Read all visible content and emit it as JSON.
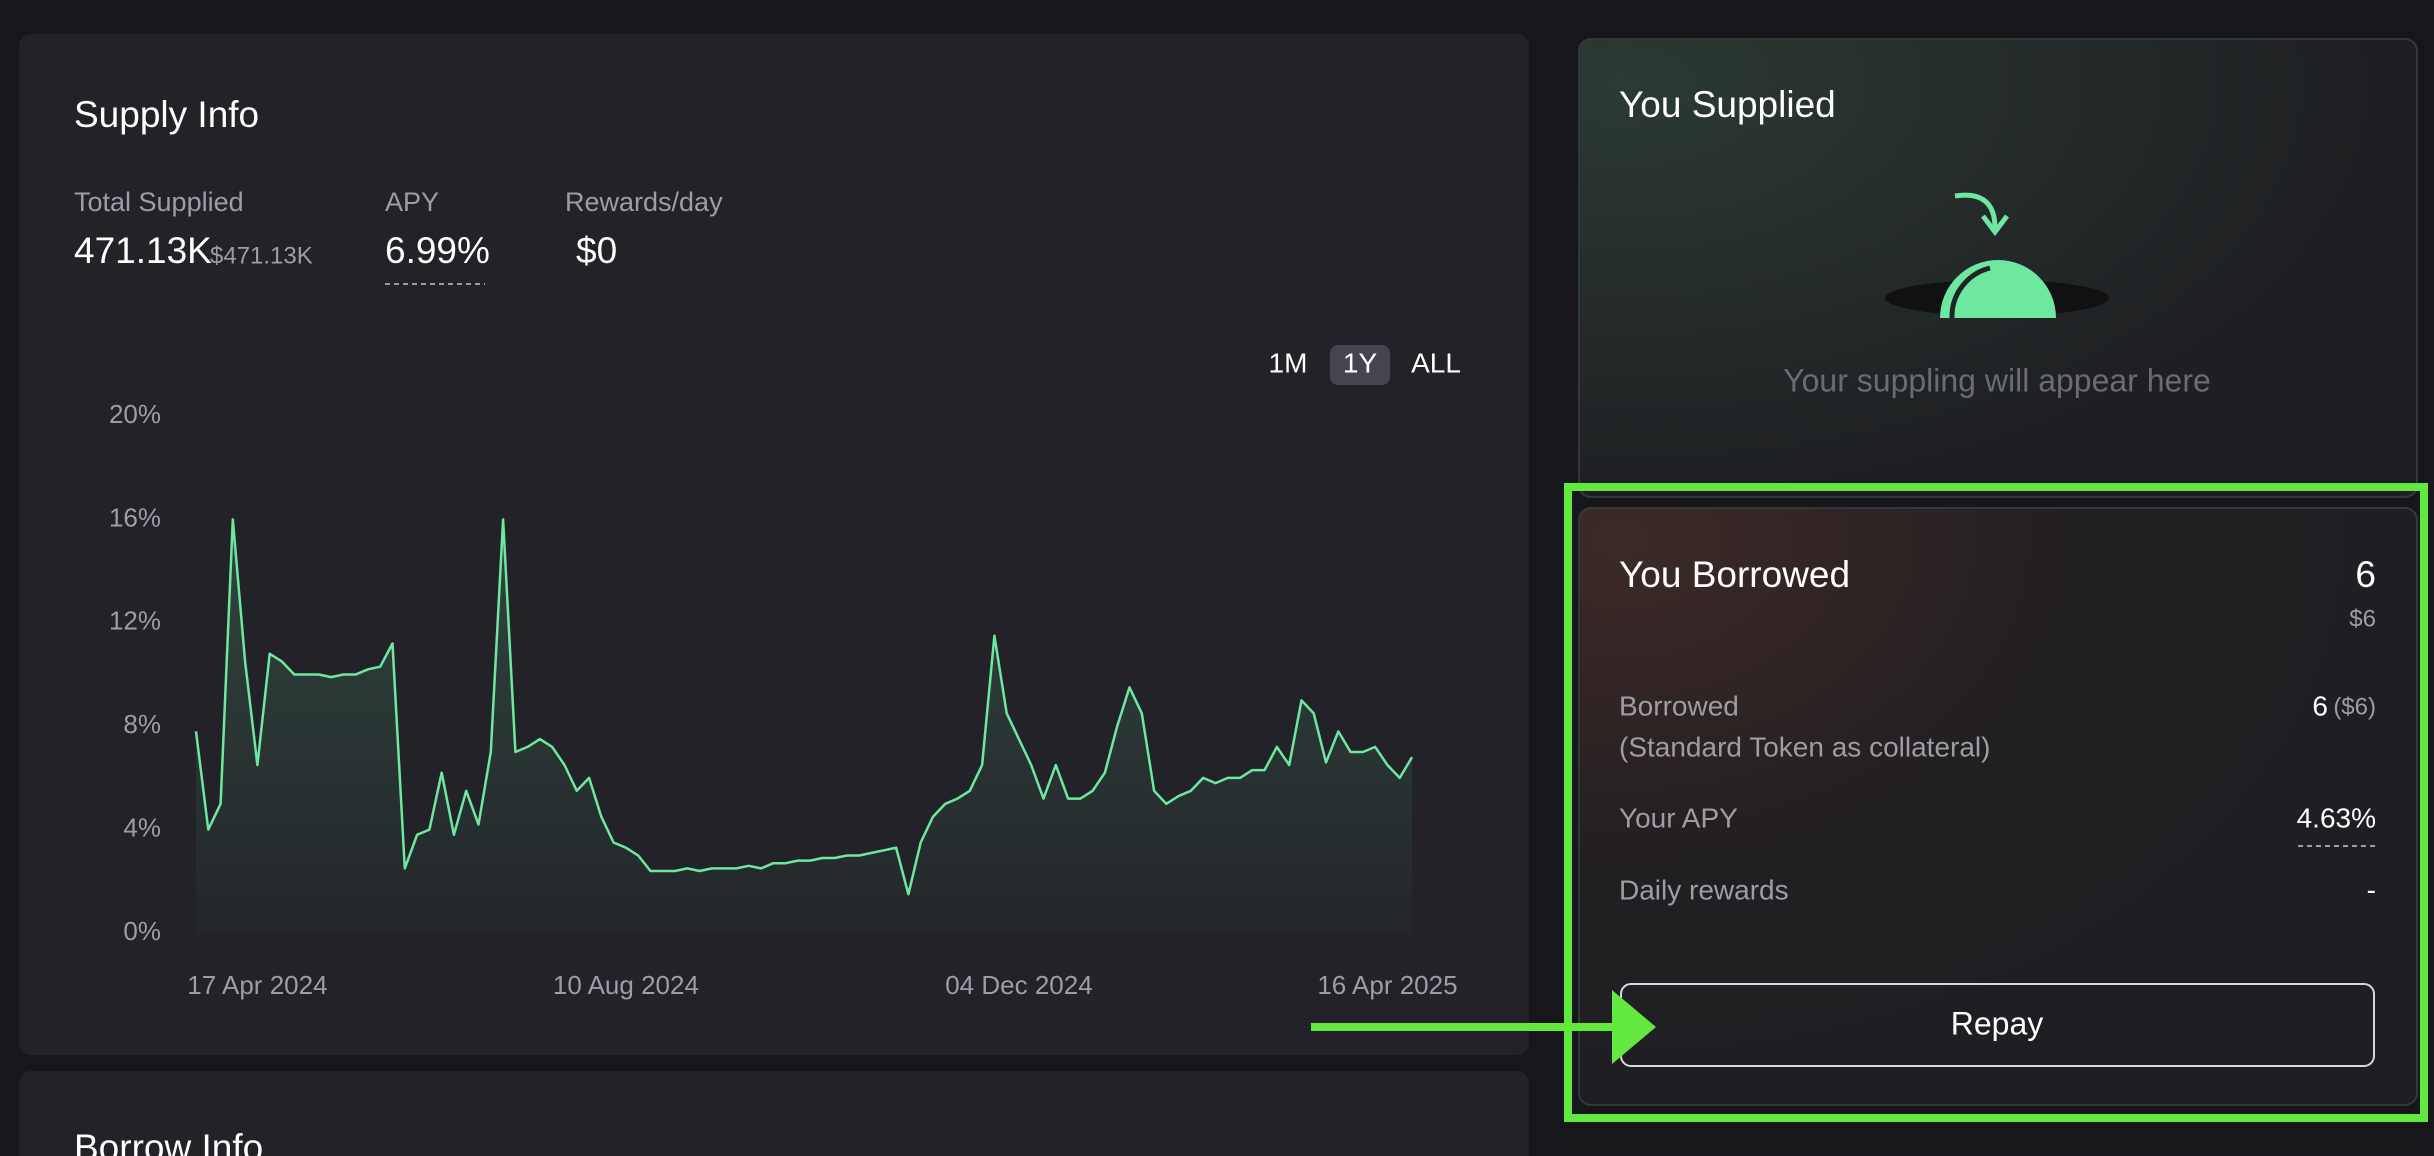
{
  "supply_info": {
    "title": "Supply Info",
    "total_supplied_label": "Total Supplied",
    "total_supplied": "471.13K",
    "total_supplied_usd": "$471.13K",
    "apy_label": "APY",
    "apy": "6.99%",
    "rewards_label": "Rewards/day",
    "rewards": "$0",
    "ranges": [
      "1M",
      "1Y",
      "ALL"
    ]
  },
  "chart_data": {
    "type": "line",
    "color": "#6ee7a0",
    "values": [
      7.8,
      4,
      5,
      16,
      10.5,
      6.5,
      10.8,
      10.5,
      10,
      10,
      10,
      9.9,
      10,
      10,
      10.2,
      10.3,
      11.2,
      2.5,
      3.8,
      4,
      6.2,
      3.8,
      5.5,
      4.2,
      7,
      16,
      7,
      7.2,
      7.5,
      7.2,
      6.5,
      5.5,
      6,
      4.5,
      3.5,
      3.3,
      3,
      2.4,
      2.4,
      2.4,
      2.5,
      2.4,
      2.5,
      2.5,
      2.5,
      2.6,
      2.5,
      2.7,
      2.7,
      2.8,
      2.8,
      2.9,
      2.9,
      3,
      3,
      3.1,
      3.2,
      3.3,
      1.5,
      3.5,
      4.5,
      5,
      5.2,
      5.5,
      6.5,
      11.5,
      8.5,
      7.5,
      6.5,
      5.2,
      6.5,
      5.2,
      5.2,
      5.5,
      6.2,
      8,
      9.5,
      8.5,
      5.5,
      5,
      5.3,
      5.5,
      6,
      5.8,
      6,
      6,
      6.3,
      6.3,
      7.2,
      6.5,
      9,
      8.5,
      6.6,
      7.8,
      7,
      7,
      7.2,
      6.5,
      6,
      6.8
    ],
    "xlim": [
      0,
      99
    ],
    "xticks": [
      {
        "value": 5,
        "label": "17 Apr 2024"
      },
      {
        "value": 35,
        "label": "10 Aug 2024"
      },
      {
        "value": 67,
        "label": "04 Dec 2024"
      },
      {
        "value": 97,
        "label": "16 Apr 2025"
      }
    ],
    "ylim": [
      0,
      20
    ],
    "yticks": [
      {
        "value": 0,
        "label": "0%"
      },
      {
        "value": 4,
        "label": "4%"
      },
      {
        "value": 8,
        "label": "8%"
      },
      {
        "value": 12,
        "label": "12%"
      },
      {
        "value": 16,
        "label": "16%"
      },
      {
        "value": 20,
        "label": "20%"
      }
    ]
  },
  "you_supplied": {
    "title": "You Supplied",
    "empty_message": "Your suppling will appear here"
  },
  "you_borrowed": {
    "title": "You Borrowed",
    "amount": "6",
    "amount_usd": "$6",
    "borrowed_label": "Borrowed",
    "collateral_note": "(Standard Token as collateral)",
    "borrowed_value": "6",
    "borrowed_usd": "($6)",
    "apy_label": "Your APY",
    "apy": "4.63%",
    "daily_rewards_label": "Daily rewards",
    "daily_rewards": "-",
    "repay_button": "Repay"
  },
  "borrow_info": {
    "title": "Borrow Info"
  }
}
